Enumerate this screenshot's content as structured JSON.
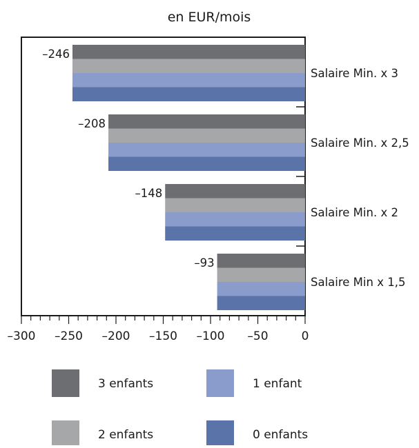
{
  "chart_data": {
    "type": "bar",
    "orientation": "horizontal",
    "title": "en EUR/mois",
    "xlabel": "",
    "ylabel": "",
    "xlim": [
      -300,
      0
    ],
    "x_ticks": [
      "–300",
      "–250",
      "–200",
      "–150",
      "–100",
      "–50",
      "0"
    ],
    "x_tick_values": [
      -300,
      -250,
      -200,
      -150,
      -100,
      -50,
      0
    ],
    "categories": [
      "Salaire Min. x 3",
      "Salaire Min. x 2,5",
      "Salaire Min. x 2",
      "Salaire Min x 1,5"
    ],
    "data_labels": [
      "–246",
      "–208",
      "–148",
      "–93"
    ],
    "series": [
      {
        "name": "3 enfants",
        "color": "#6d6e71",
        "values": [
          -246,
          -208,
          -148,
          -93
        ]
      },
      {
        "name": "2 enfants",
        "color": "#a6a7a9",
        "values": [
          -246,
          -208,
          -148,
          -93
        ]
      },
      {
        "name": "1 enfant",
        "color": "#8a9ccb",
        "values": [
          -246,
          -208,
          -148,
          -93
        ]
      },
      {
        "name": "0 enfants",
        "color": "#5a73a8",
        "values": [
          -246,
          -208,
          -148,
          -93
        ]
      }
    ],
    "legend": {
      "position": "bottom",
      "order": [
        "3 enfants",
        "1 enfant",
        "2 enfants",
        "0 enfants"
      ]
    },
    "grid": false
  }
}
